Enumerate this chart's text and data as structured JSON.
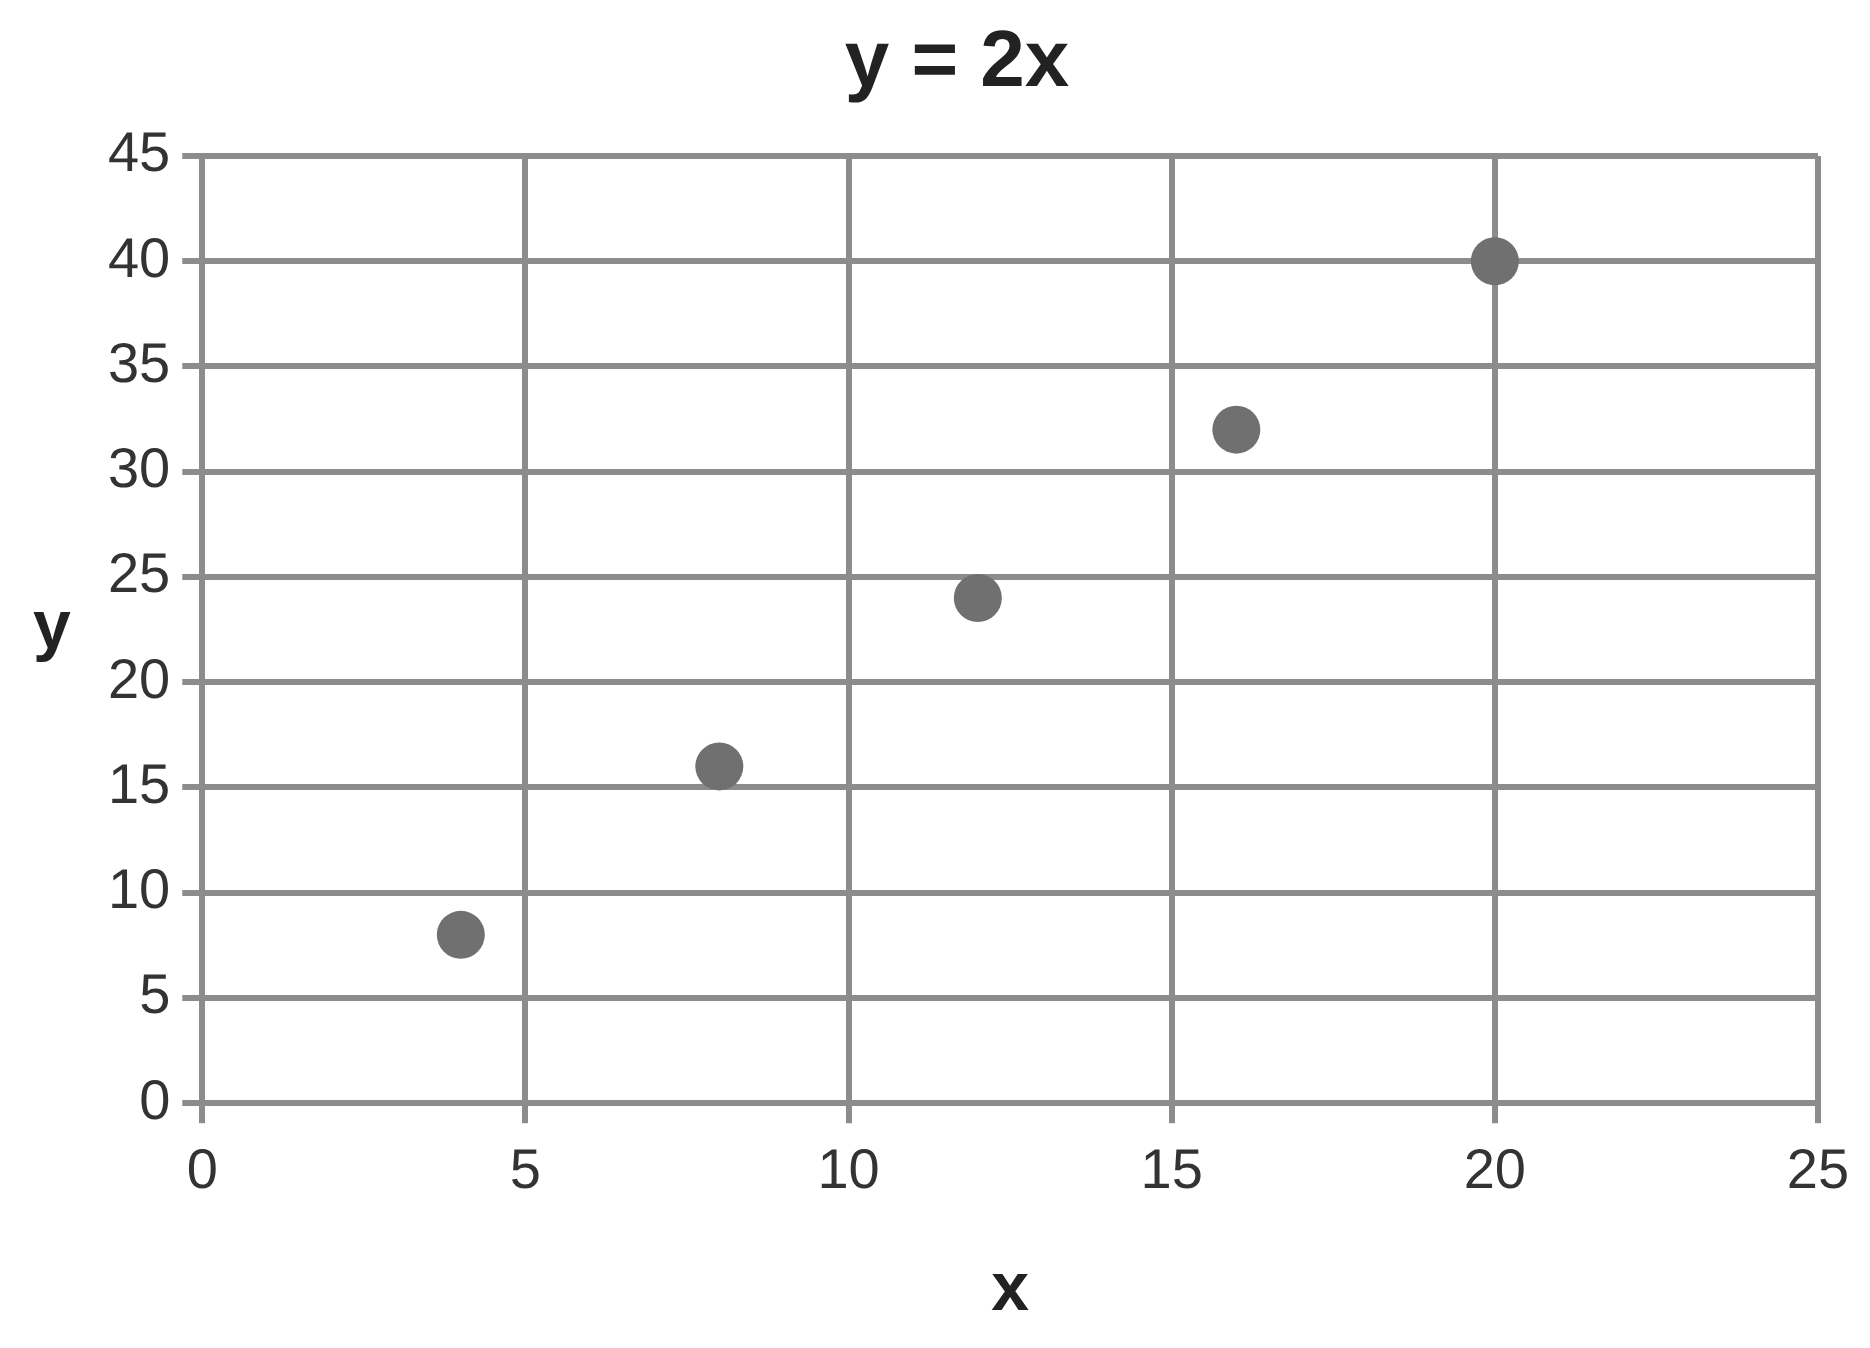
{
  "chart_data": {
    "type": "scatter",
    "title": "y = 2x",
    "xlabel": "x",
    "ylabel": "y",
    "x": [
      4,
      8,
      12,
      16,
      20
    ],
    "series": [
      {
        "color": "#707070",
        "values": [
          8,
          16,
          24,
          32,
          40
        ]
      }
    ],
    "xlim": [
      0,
      25
    ],
    "xticks": [
      0,
      5,
      10,
      15,
      20,
      25
    ],
    "ylim": [
      0,
      45
    ],
    "yticks": [
      0,
      5,
      10,
      15,
      20,
      25,
      30,
      35,
      40,
      45
    ],
    "grid": true,
    "legend": false,
    "marker": "circle"
  }
}
